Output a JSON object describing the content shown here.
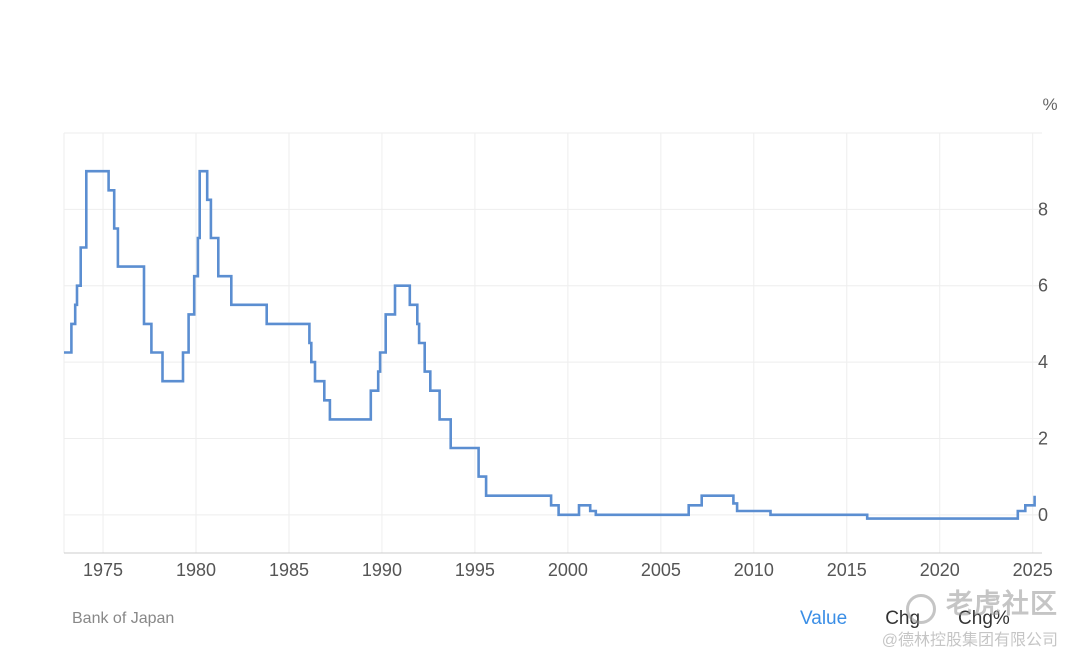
{
  "chart_data": {
    "type": "line",
    "title": "",
    "xlabel": "",
    "ylabel": "",
    "unit": "%",
    "xlim": [
      1972.9,
      2025.5
    ],
    "ylim": [
      -1,
      10
    ],
    "x_ticks": [
      1975,
      1980,
      1985,
      1990,
      1995,
      2000,
      2005,
      2010,
      2015,
      2020,
      2025
    ],
    "y_ticks": [
      0,
      2,
      4,
      6,
      8
    ],
    "grid": true,
    "line_color": "#5b8ed1",
    "step": true,
    "series": [
      {
        "name": "",
        "points": [
          [
            1972.9,
            4.25
          ],
          [
            1973.3,
            4.25
          ],
          [
            1973.3,
            5.0
          ],
          [
            1973.5,
            5.0
          ],
          [
            1973.5,
            5.5
          ],
          [
            1973.6,
            5.5
          ],
          [
            1973.6,
            6.0
          ],
          [
            1973.8,
            6.0
          ],
          [
            1973.8,
            7.0
          ],
          [
            1974.1,
            7.0
          ],
          [
            1974.1,
            9.0
          ],
          [
            1975.3,
            9.0
          ],
          [
            1975.3,
            8.5
          ],
          [
            1975.6,
            8.5
          ],
          [
            1975.6,
            7.5
          ],
          [
            1975.8,
            7.5
          ],
          [
            1975.8,
            6.5
          ],
          [
            1977.2,
            6.5
          ],
          [
            1977.2,
            5.0
          ],
          [
            1977.6,
            5.0
          ],
          [
            1977.6,
            4.25
          ],
          [
            1978.2,
            4.25
          ],
          [
            1978.2,
            3.5
          ],
          [
            1979.3,
            3.5
          ],
          [
            1979.3,
            4.25
          ],
          [
            1979.6,
            4.25
          ],
          [
            1979.6,
            5.25
          ],
          [
            1979.9,
            5.25
          ],
          [
            1979.9,
            6.25
          ],
          [
            1980.1,
            6.25
          ],
          [
            1980.1,
            7.25
          ],
          [
            1980.2,
            7.25
          ],
          [
            1980.2,
            9.0
          ],
          [
            1980.6,
            9.0
          ],
          [
            1980.6,
            8.25
          ],
          [
            1980.8,
            8.25
          ],
          [
            1980.8,
            7.25
          ],
          [
            1981.2,
            7.25
          ],
          [
            1981.2,
            6.25
          ],
          [
            1981.9,
            6.25
          ],
          [
            1981.9,
            5.5
          ],
          [
            1983.8,
            5.5
          ],
          [
            1983.8,
            5.0
          ],
          [
            1986.1,
            5.0
          ],
          [
            1986.1,
            4.5
          ],
          [
            1986.2,
            4.5
          ],
          [
            1986.2,
            4.0
          ],
          [
            1986.4,
            4.0
          ],
          [
            1986.4,
            3.5
          ],
          [
            1986.9,
            3.5
          ],
          [
            1986.9,
            3.0
          ],
          [
            1987.2,
            3.0
          ],
          [
            1987.2,
            2.5
          ],
          [
            1989.4,
            2.5
          ],
          [
            1989.4,
            3.25
          ],
          [
            1989.8,
            3.25
          ],
          [
            1989.8,
            3.75
          ],
          [
            1989.9,
            3.75
          ],
          [
            1989.9,
            4.25
          ],
          [
            1990.2,
            4.25
          ],
          [
            1990.2,
            5.25
          ],
          [
            1990.7,
            5.25
          ],
          [
            1990.7,
            6.0
          ],
          [
            1991.5,
            6.0
          ],
          [
            1991.5,
            5.5
          ],
          [
            1991.9,
            5.5
          ],
          [
            1991.9,
            5.0
          ],
          [
            1992.0,
            5.0
          ],
          [
            1992.0,
            4.5
          ],
          [
            1992.3,
            4.5
          ],
          [
            1992.3,
            3.75
          ],
          [
            1992.6,
            3.75
          ],
          [
            1992.6,
            3.25
          ],
          [
            1993.1,
            3.25
          ],
          [
            1993.1,
            2.5
          ],
          [
            1993.7,
            2.5
          ],
          [
            1993.7,
            1.75
          ],
          [
            1995.2,
            1.75
          ],
          [
            1995.2,
            1.0
          ],
          [
            1995.6,
            1.0
          ],
          [
            1995.6,
            0.5
          ],
          [
            1999.1,
            0.5
          ],
          [
            1999.1,
            0.25
          ],
          [
            1999.5,
            0.25
          ],
          [
            1999.5,
            0.0
          ],
          [
            2000.6,
            0.0
          ],
          [
            2000.6,
            0.25
          ],
          [
            2001.2,
            0.25
          ],
          [
            2001.2,
            0.1
          ],
          [
            2001.5,
            0.1
          ],
          [
            2001.5,
            0.0
          ],
          [
            2006.5,
            0.0
          ],
          [
            2006.5,
            0.25
          ],
          [
            2007.2,
            0.25
          ],
          [
            2007.2,
            0.5
          ],
          [
            2008.9,
            0.5
          ],
          [
            2008.9,
            0.3
          ],
          [
            2009.1,
            0.3
          ],
          [
            2009.1,
            0.1
          ],
          [
            2010.9,
            0.1
          ],
          [
            2010.9,
            0.0
          ],
          [
            2016.1,
            0.0
          ],
          [
            2016.1,
            -0.1
          ],
          [
            2024.2,
            -0.1
          ],
          [
            2024.2,
            0.1
          ],
          [
            2024.6,
            0.1
          ],
          [
            2024.6,
            0.25
          ],
          [
            2025.1,
            0.25
          ],
          [
            2025.1,
            0.5
          ]
        ]
      }
    ]
  },
  "source": "Bank of Japan",
  "toggles": [
    "Value",
    "Chg",
    "Chg%"
  ],
  "active_toggle": "Value",
  "watermark": {
    "brand": "老虎社区",
    "sub": "@德林控股集团有限公司"
  },
  "colors": {
    "line": "#5b8ed1",
    "grid": "#eeeeee",
    "active_toggle": "#3a8ee6"
  }
}
